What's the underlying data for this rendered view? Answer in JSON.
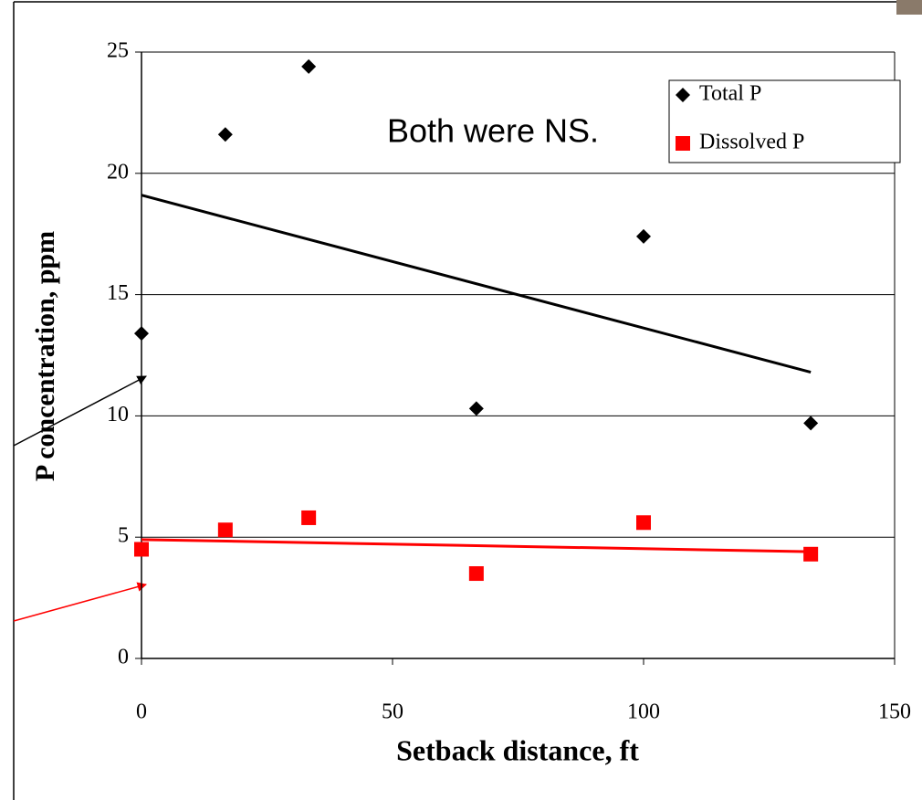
{
  "chart_data": {
    "type": "scatter",
    "annotation": "Both were NS.",
    "x_label": "Setback distance, ft",
    "y_label": "P concentration, ppm",
    "series": [
      {
        "name": "Total P",
        "color": "#000000",
        "marker": "diamond",
        "x": [
          0,
          16.7,
          33.3,
          66.7,
          100,
          133.3
        ],
        "values": [
          13.4,
          21.6,
          24.4,
          10.3,
          17.4,
          9.7
        ],
        "trendline": {
          "x": [
            0,
            133.3
          ],
          "values": [
            19.1,
            11.8
          ]
        }
      },
      {
        "name": "Dissolved P",
        "color": "#ff0000",
        "marker": "square",
        "x": [
          0,
          16.7,
          33.3,
          66.7,
          100,
          133.3
        ],
        "values": [
          4.5,
          5.3,
          5.8,
          3.5,
          5.6,
          4.3
        ],
        "trendline": {
          "x": [
            0,
            133.3
          ],
          "values": [
            4.9,
            4.4
          ]
        }
      }
    ],
    "xlim": [
      0,
      150
    ],
    "xticks": [
      0,
      50,
      100,
      150
    ],
    "ylim": [
      0,
      25
    ],
    "yticks": [
      0,
      5,
      10,
      15,
      20,
      25
    ],
    "grid": true,
    "legend": "top-right"
  }
}
